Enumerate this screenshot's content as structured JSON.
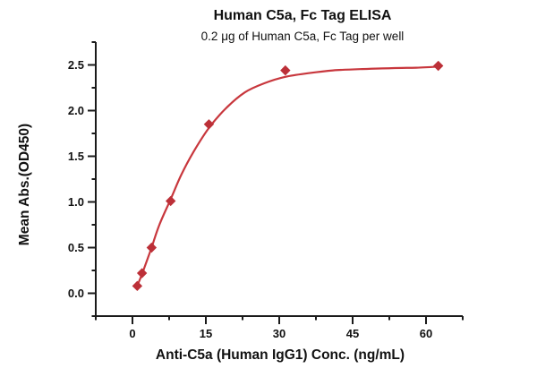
{
  "chart_data": {
    "type": "scatter",
    "title": "Human C5a, Fc Tag ELISA",
    "subtitle": "0.2 μg of Human C5a, Fc Tag per well",
    "xlabel": "Anti-C5a (Human IgG1) Conc. (ng/mL)",
    "ylabel": "Mean Abs.(OD450)",
    "xlim": [
      -7.5,
      67.5
    ],
    "ylim": [
      -0.25,
      2.75
    ],
    "x_major_ticks": [
      0,
      15,
      30,
      45,
      60
    ],
    "x_tick_labels": [
      "0",
      "15",
      "30",
      "45",
      "60"
    ],
    "x_minor_ticks": [
      -7.5,
      7.5,
      22.5,
      37.5,
      52.5,
      67.5
    ],
    "y_major_ticks": [
      0.0,
      0.5,
      1.0,
      1.5,
      2.0,
      2.5
    ],
    "y_tick_labels": [
      "0.0",
      "0.5",
      "1.0",
      "1.5",
      "2.0",
      "2.5"
    ],
    "y_minor_ticks": [
      -0.25,
      0.25,
      0.75,
      1.25,
      1.75,
      2.25,
      2.75
    ],
    "grid": false,
    "legend": null,
    "marker": "diamond",
    "colors": {
      "curve": "#C8373D",
      "marker": "#BC3038",
      "axis": "#1a1a1a",
      "text": "#111111"
    },
    "points": [
      {
        "x": 0.98,
        "y": 0.08
      },
      {
        "x": 1.95,
        "y": 0.22
      },
      {
        "x": 3.91,
        "y": 0.5
      },
      {
        "x": 7.81,
        "y": 1.01
      },
      {
        "x": 15.63,
        "y": 1.85
      },
      {
        "x": 31.25,
        "y": 2.44
      },
      {
        "x": 62.5,
        "y": 2.49
      }
    ],
    "curve_points": [
      {
        "x": 0.98,
        "y": 0.08
      },
      {
        "x": 1.95,
        "y": 0.21
      },
      {
        "x": 2.9,
        "y": 0.35
      },
      {
        "x": 3.91,
        "y": 0.5
      },
      {
        "x": 5.5,
        "y": 0.75
      },
      {
        "x": 7.81,
        "y": 1.03
      },
      {
        "x": 10.0,
        "y": 1.3
      },
      {
        "x": 12.5,
        "y": 1.55
      },
      {
        "x": 15.63,
        "y": 1.81
      },
      {
        "x": 19.0,
        "y": 2.02
      },
      {
        "x": 23.0,
        "y": 2.2
      },
      {
        "x": 27.0,
        "y": 2.3
      },
      {
        "x": 31.25,
        "y": 2.37
      },
      {
        "x": 36.0,
        "y": 2.41
      },
      {
        "x": 41.0,
        "y": 2.44
      },
      {
        "x": 47.0,
        "y": 2.455
      },
      {
        "x": 53.0,
        "y": 2.465
      },
      {
        "x": 58.0,
        "y": 2.47
      },
      {
        "x": 62.5,
        "y": 2.48
      }
    ]
  }
}
